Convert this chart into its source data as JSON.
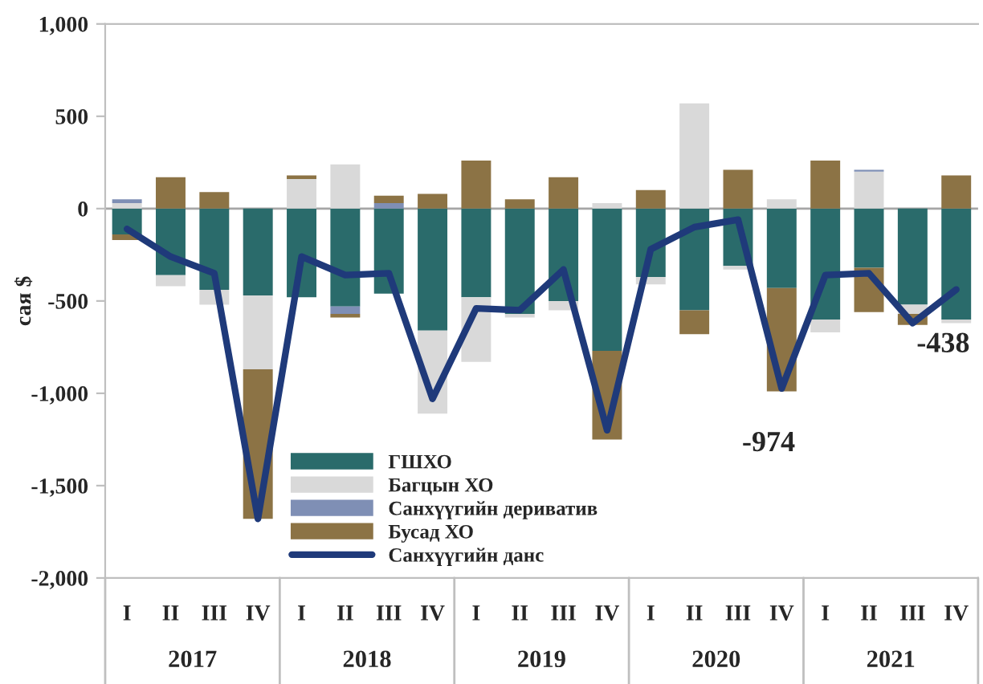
{
  "chart_data": {
    "type": "bar",
    "stacked": true,
    "ylabel": "сая $",
    "categories": [
      "I",
      "II",
      "III",
      "IV",
      "I",
      "II",
      "III",
      "IV",
      "I",
      "II",
      "III",
      "IV",
      "I",
      "II",
      "III",
      "IV",
      "I",
      "II",
      "III",
      "IV"
    ],
    "series": [
      {
        "name": "ГШХО",
        "color": "#2a6b6b",
        "values": [
          -140,
          -360,
          -440,
          -470,
          -480,
          -530,
          -460,
          -660,
          -480,
          -570,
          -500,
          -770,
          -370,
          -550,
          -310,
          -430,
          -600,
          -320,
          -520,
          -600
        ]
      },
      {
        "name": "Багцын ХО",
        "color": "#d9d9d9",
        "values": [
          30,
          -60,
          -80,
          -400,
          160,
          240,
          0,
          -450,
          -350,
          -20,
          -50,
          30,
          -40,
          570,
          -20,
          50,
          -70,
          200,
          -50,
          -20
        ]
      },
      {
        "name": "Санхүүгийн дериватив",
        "color": "#7f8fb5",
        "values": [
          20,
          0,
          0,
          0,
          0,
          -40,
          30,
          0,
          0,
          0,
          0,
          0,
          0,
          0,
          0,
          0,
          0,
          10,
          0,
          0
        ]
      },
      {
        "name": "Бусад ХО",
        "color": "#8c7345",
        "values": [
          -30,
          170,
          90,
          -810,
          20,
          -20,
          40,
          80,
          260,
          50,
          170,
          -480,
          100,
          -130,
          210,
          -560,
          260,
          -240,
          -60,
          180
        ]
      },
      {
        "name": "Санхүүгийн данс",
        "type": "line",
        "color": "#1f3a7a",
        "values": [
          -110,
          -260,
          -350,
          -1680,
          -260,
          -360,
          -350,
          -1030,
          -540,
          -550,
          -330,
          -1200,
          -220,
          -100,
          -60,
          -974,
          -360,
          -350,
          -620,
          -438
        ],
        "value_labels": [
          null,
          null,
          null,
          null,
          null,
          null,
          null,
          null,
          null,
          null,
          null,
          null,
          null,
          null,
          null,
          "-974",
          null,
          null,
          null,
          "-438"
        ]
      }
    ],
    "annotations": [
      "2017",
      "2018",
      "2019",
      "2020",
      "2021"
    ],
    "ylim": [
      -2000,
      1000
    ],
    "yticks": [
      {
        "value": -2000,
        "label": "-2,000"
      },
      {
        "value": -1500,
        "label": "-1,500"
      },
      {
        "value": -1000,
        "label": "-1,000"
      },
      -500,
      0,
      500,
      {
        "value": 1000,
        "label": "1,000"
      }
    ],
    "ref_lines": [
      {
        "axis": "y",
        "value": 0,
        "color": "#a6a6a6"
      }
    ],
    "legend": "bottom left",
    "grid": false
  }
}
